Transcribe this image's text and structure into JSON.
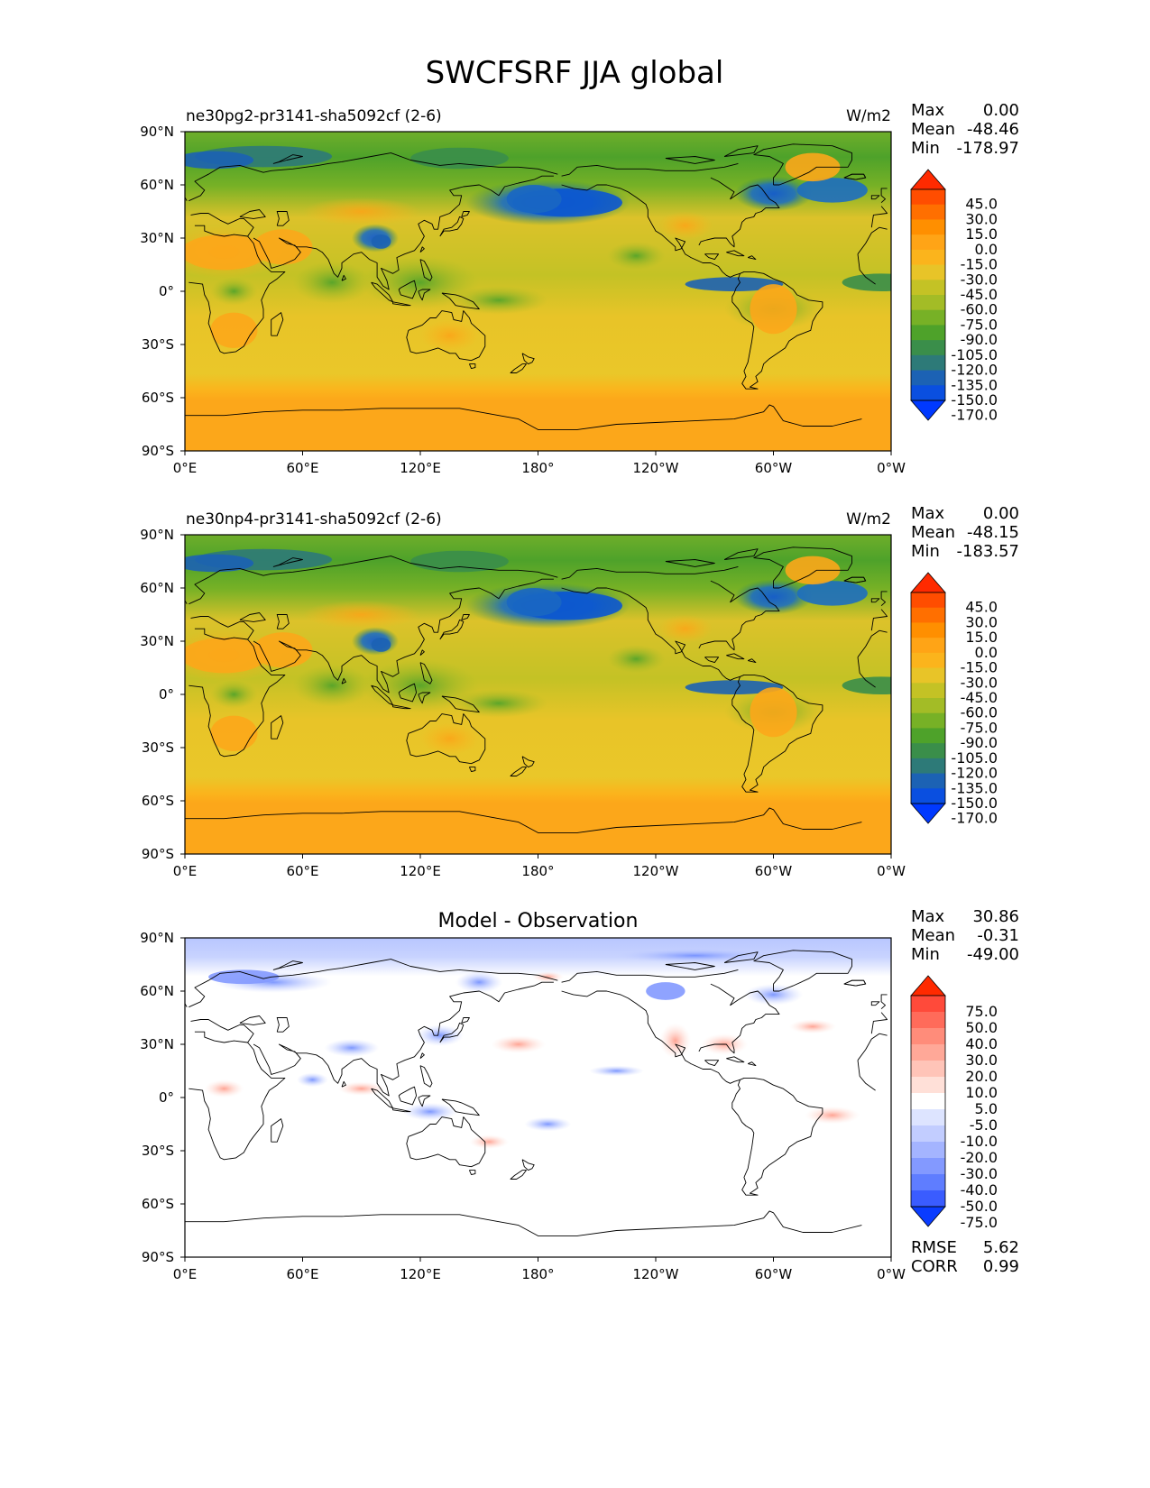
{
  "figure": {
    "title": "SWCFSRF JJA global"
  },
  "chart_data": [
    {
      "type": "heatmap",
      "title": "ne30pg2-pr3141-sha5092cf (2-6)",
      "units": "W/m2",
      "x_ticks": [
        "0°E",
        "60°E",
        "120°E",
        "180°",
        "120°W",
        "60°W",
        "0°W"
      ],
      "y_ticks": [
        "90°N",
        "60°N",
        "30°N",
        "0°",
        "30°S",
        "60°S",
        "90°S"
      ],
      "stats": [
        {
          "label": "Max",
          "value": "0.00"
        },
        {
          "label": "Mean",
          "value": "-48.46"
        },
        {
          "label": "Min",
          "value": "-178.97"
        }
      ],
      "colorbar": {
        "levels": [
          "45.0",
          "30.0",
          "15.0",
          "0.0",
          "-15.0",
          "-30.0",
          "-45.0",
          "-60.0",
          "-75.0",
          "-90.0",
          "-105.0",
          "-120.0",
          "-135.0",
          "-150.0",
          "-170.0"
        ],
        "colors": [
          "#ff2a00",
          "#ff4d00",
          "#ff6f00",
          "#ff8f00",
          "#ffa416",
          "#fbb41c",
          "#e8c428",
          "#c4c225",
          "#a3bc26",
          "#77b126",
          "#4ea22a",
          "#3a8e4a",
          "#2d7a78",
          "#1c62b4",
          "#0a4fe0",
          "#0039ff"
        ]
      }
    },
    {
      "type": "heatmap",
      "title": "ne30np4-pr3141-sha5092cf (2-6)",
      "units": "W/m2",
      "x_ticks": [
        "0°E",
        "60°E",
        "120°E",
        "180°",
        "120°W",
        "60°W",
        "0°W"
      ],
      "y_ticks": [
        "90°N",
        "60°N",
        "30°N",
        "0°",
        "30°S",
        "60°S",
        "90°S"
      ],
      "stats": [
        {
          "label": "Max",
          "value": "0.00"
        },
        {
          "label": "Mean",
          "value": "-48.15"
        },
        {
          "label": "Min",
          "value": "-183.57"
        }
      ],
      "colorbar": {
        "levels": [
          "45.0",
          "30.0",
          "15.0",
          "0.0",
          "-15.0",
          "-30.0",
          "-45.0",
          "-60.0",
          "-75.0",
          "-90.0",
          "-105.0",
          "-120.0",
          "-135.0",
          "-150.0",
          "-170.0"
        ],
        "colors": [
          "#ff2a00",
          "#ff4d00",
          "#ff6f00",
          "#ff8f00",
          "#ffa416",
          "#fbb41c",
          "#e8c428",
          "#c4c225",
          "#a3bc26",
          "#77b126",
          "#4ea22a",
          "#3a8e4a",
          "#2d7a78",
          "#1c62b4",
          "#0a4fe0",
          "#0039ff"
        ]
      }
    },
    {
      "type": "heatmap",
      "title": "Model - Observation",
      "x_ticks": [
        "0°E",
        "60°E",
        "120°E",
        "180°",
        "120°W",
        "60°W",
        "0°W"
      ],
      "y_ticks": [
        "90°N",
        "60°N",
        "30°N",
        "0°",
        "30°S",
        "60°S",
        "90°S"
      ],
      "stats": [
        {
          "label": "Max",
          "value": "30.86"
        },
        {
          "label": "Mean",
          "value": "-0.31"
        },
        {
          "label": "Min",
          "value": "-49.00"
        }
      ],
      "extra_stats": [
        {
          "label": "RMSE",
          "value": "5.62"
        },
        {
          "label": "CORR",
          "value": "0.99"
        }
      ],
      "colorbar": {
        "levels": [
          "75.0",
          "50.0",
          "40.0",
          "30.0",
          "20.0",
          "10.0",
          "5.0",
          "-5.0",
          "-10.0",
          "-20.0",
          "-30.0",
          "-40.0",
          "-50.0",
          "-75.0"
        ],
        "colors": [
          "#ff2a00",
          "#ff4a3a",
          "#ff6b5a",
          "#ff8c7a",
          "#ffa898",
          "#ffc4b8",
          "#ffe0d8",
          "#ffffff",
          "#dde4ff",
          "#c2cdff",
          "#a4b4ff",
          "#8399ff",
          "#5f7dff",
          "#3a5cff",
          "#0a3cff"
        ]
      }
    }
  ]
}
